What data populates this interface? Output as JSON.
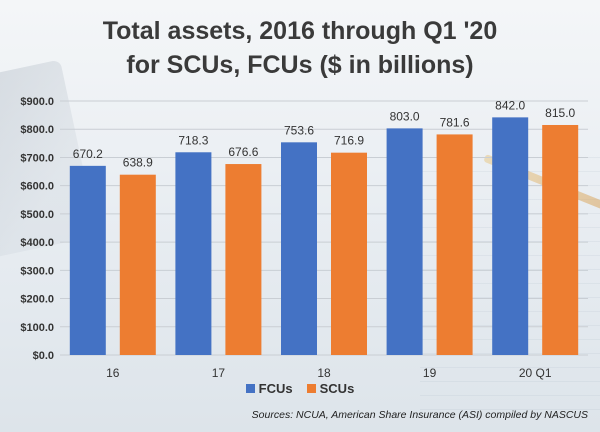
{
  "title_line1": "Total assets, 2016 through Q1 '20",
  "title_line2": "for SCUs, FCUs ($ in billions)",
  "source": "Sources: NCUA, American Share Insurance (ASI) compiled by NASCUS",
  "colors": {
    "FCUs": "#4472c4",
    "SCUs": "#ed7d31"
  },
  "chart_data": {
    "type": "bar",
    "categories": [
      "16",
      "17",
      "18",
      "19",
      "20 Q1"
    ],
    "series": [
      {
        "name": "FCUs",
        "values": [
          670.2,
          718.3,
          753.6,
          803.0,
          842.0
        ],
        "labels": [
          "670.2",
          "718.3",
          "753.6",
          "803.0",
          "842.0"
        ]
      },
      {
        "name": "SCUs",
        "values": [
          638.9,
          676.6,
          716.9,
          781.6,
          815.0
        ],
        "labels": [
          "638.9",
          "676.6",
          "716.9",
          "781.6",
          "815.0"
        ]
      }
    ],
    "ylim": [
      0,
      900
    ],
    "yticks": [
      "$0.0",
      "$100.0",
      "$200.0",
      "$300.0",
      "$400.0",
      "$500.0",
      "$600.0",
      "$700.0",
      "$800.0",
      "$900.0"
    ],
    "grid": true,
    "legend_position": "bottom"
  }
}
